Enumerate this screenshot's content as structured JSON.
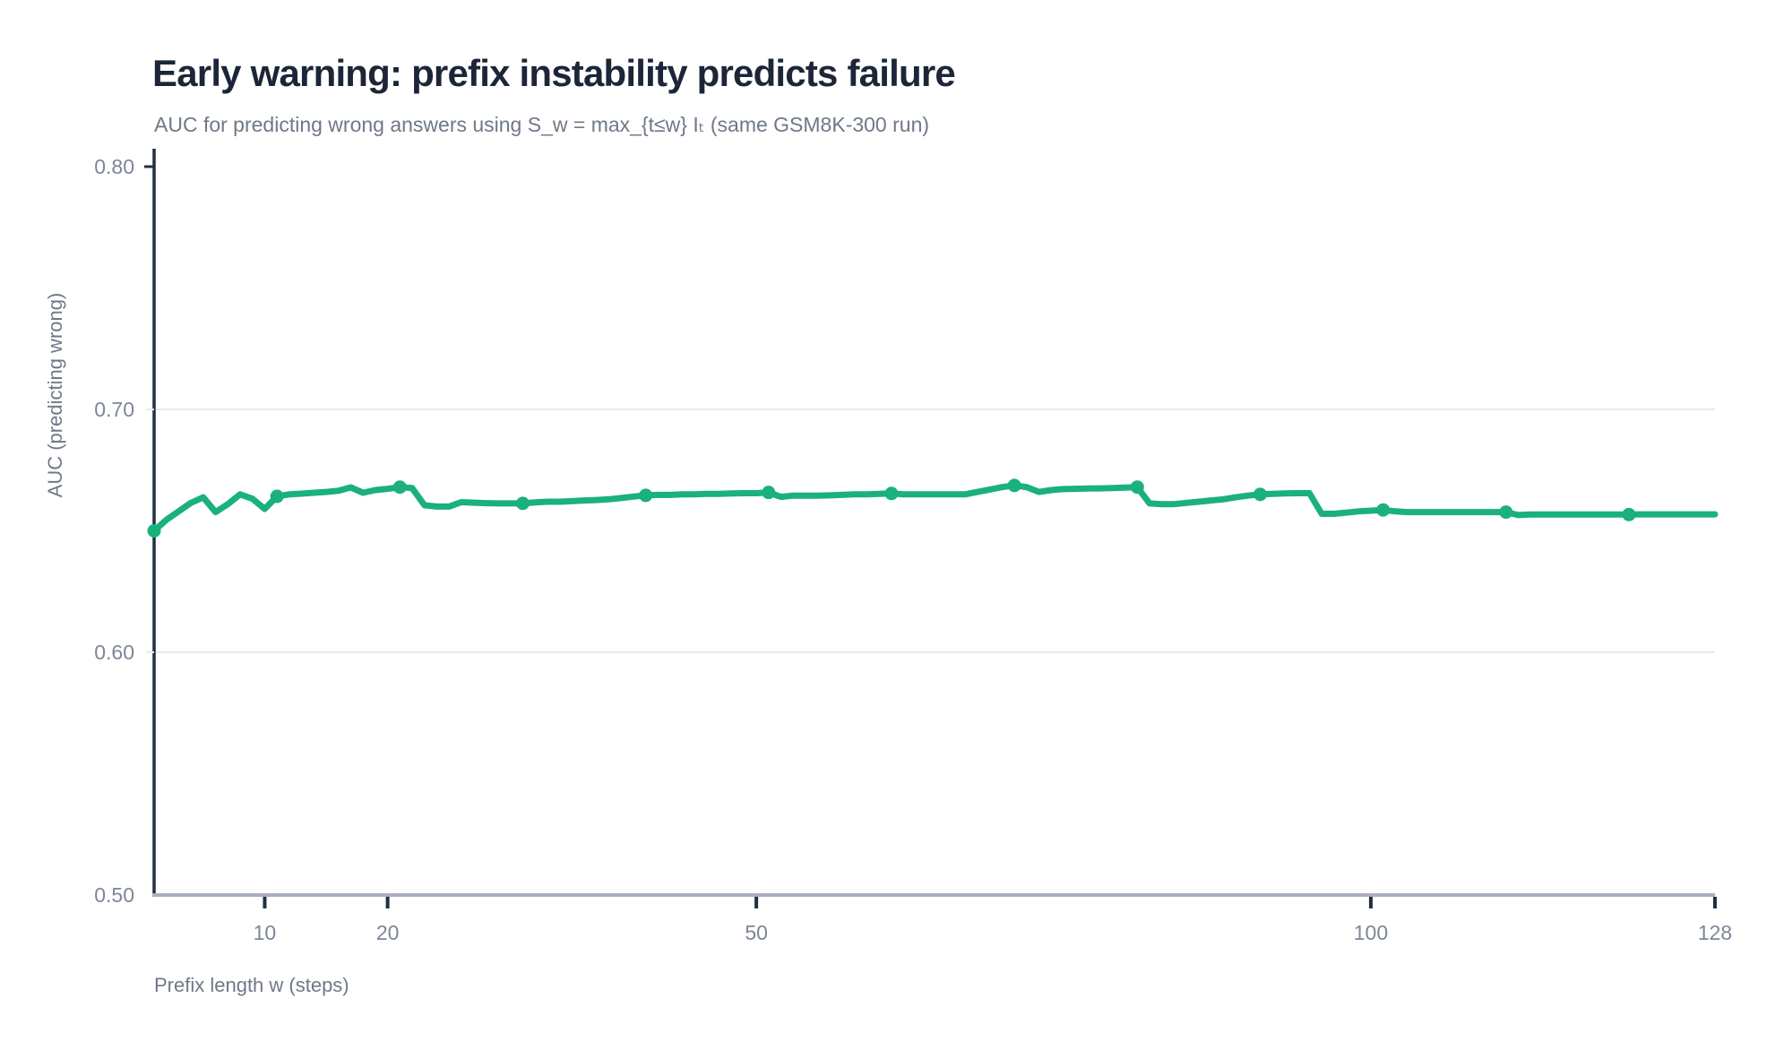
{
  "header": {
    "title": "Early warning: prefix instability predicts failure",
    "subtitle": "AUC for predicting wrong answers using S_w = max_{t≤w} Iₜ (same GSM8K-300 run)"
  },
  "chart_data": {
    "type": "line",
    "title": "Early warning: prefix instability predicts failure",
    "subtitle": "AUC for predicting wrong answers using S_w = max_{t≤w} Iₜ (same GSM8K-300 run)",
    "xlabel": "Prefix length w (steps)",
    "ylabel": "AUC (predicting wrong)",
    "xlim": [
      1,
      128
    ],
    "ylim": [
      0.5,
      0.8
    ],
    "grid": "horizontal gridlines at 0.60 and 0.70 only",
    "legend": "none",
    "x_ticks": [
      {
        "value": 10,
        "label": "10"
      },
      {
        "value": 20,
        "label": "20"
      },
      {
        "value": 50,
        "label": "50"
      },
      {
        "value": 100,
        "label": "100"
      },
      {
        "value": 128,
        "label": "128"
      }
    ],
    "y_ticks": [
      {
        "value": 0.5,
        "label": "0.50"
      },
      {
        "value": 0.6,
        "label": "0.60"
      },
      {
        "value": 0.7,
        "label": "0.70"
      },
      {
        "value": 0.8,
        "label": "0.80"
      }
    ],
    "y_gridlines": [
      0.6,
      0.7
    ],
    "series": [
      {
        "name": "AUC (predicting wrong)",
        "color": "#1ab17c",
        "marker_every_x": [
          1,
          11,
          21,
          31,
          41,
          51,
          61,
          71,
          81,
          91,
          101,
          111,
          121
        ],
        "x": [
          1,
          2,
          3,
          4,
          5,
          6,
          7,
          8,
          9,
          10,
          11,
          12,
          13,
          14,
          15,
          16,
          17,
          18,
          19,
          20,
          21,
          22,
          23,
          24,
          25,
          26,
          27,
          28,
          29,
          30,
          31,
          32,
          33,
          34,
          35,
          36,
          37,
          38,
          39,
          40,
          41,
          42,
          43,
          44,
          45,
          46,
          47,
          48,
          49,
          50,
          51,
          52,
          53,
          54,
          55,
          56,
          57,
          58,
          59,
          60,
          61,
          62,
          63,
          64,
          65,
          66,
          67,
          68,
          69,
          70,
          71,
          72,
          73,
          74,
          75,
          76,
          77,
          78,
          79,
          80,
          81,
          82,
          83,
          84,
          85,
          86,
          87,
          88,
          89,
          90,
          91,
          92,
          93,
          94,
          95,
          96,
          97,
          98,
          99,
          100,
          101,
          102,
          103,
          104,
          105,
          106,
          107,
          108,
          109,
          110,
          111,
          112,
          113,
          114,
          115,
          116,
          117,
          118,
          119,
          120,
          121,
          122,
          123,
          124,
          125,
          126,
          127,
          128
        ],
        "y": [
          0.65,
          0.6545,
          0.658,
          0.6615,
          0.6638,
          0.6577,
          0.661,
          0.665,
          0.6632,
          0.659,
          0.6642,
          0.665,
          0.6653,
          0.6657,
          0.666,
          0.6665,
          0.6679,
          0.6657,
          0.6668,
          0.6673,
          0.668,
          0.6676,
          0.6605,
          0.66,
          0.66,
          0.6618,
          0.6616,
          0.6614,
          0.6613,
          0.6613,
          0.6613,
          0.6617,
          0.662,
          0.662,
          0.6622,
          0.6625,
          0.6627,
          0.663,
          0.6635,
          0.6641,
          0.6646,
          0.6648,
          0.6648,
          0.665,
          0.665,
          0.6652,
          0.6652,
          0.6654,
          0.6655,
          0.6655,
          0.6658,
          0.664,
          0.6645,
          0.6645,
          0.6645,
          0.6646,
          0.6648,
          0.665,
          0.665,
          0.6652,
          0.6654,
          0.665,
          0.665,
          0.665,
          0.665,
          0.665,
          0.665,
          0.666,
          0.667,
          0.668,
          0.6687,
          0.668,
          0.666,
          0.6668,
          0.6672,
          0.6673,
          0.6674,
          0.6675,
          0.6676,
          0.6678,
          0.668,
          0.6613,
          0.661,
          0.661,
          0.6615,
          0.662,
          0.6625,
          0.663,
          0.6638,
          0.6645,
          0.665,
          0.6652,
          0.6654,
          0.6655,
          0.6655,
          0.657,
          0.657,
          0.6575,
          0.658,
          0.6583,
          0.6586,
          0.658,
          0.6577,
          0.6577,
          0.6577,
          0.6577,
          0.6577,
          0.6577,
          0.6577,
          0.6577,
          0.6577,
          0.6565,
          0.6567,
          0.6567,
          0.6567,
          0.6567,
          0.6567,
          0.6567,
          0.6567,
          0.6567,
          0.6567,
          0.6568,
          0.6568,
          0.6568,
          0.6568,
          0.6568,
          0.6568,
          0.6568
        ]
      }
    ]
  },
  "colors": {
    "background": "#ffffff",
    "title": "#1c2638",
    "subtitle": "#6f7888",
    "tick_text": "#7d8697",
    "gridline": "#e9ebef",
    "y_axis_line": "#222e42",
    "x_axis_line": "#a9b0bc",
    "tick_mark": "#222e42",
    "line": "#1ab17c"
  }
}
